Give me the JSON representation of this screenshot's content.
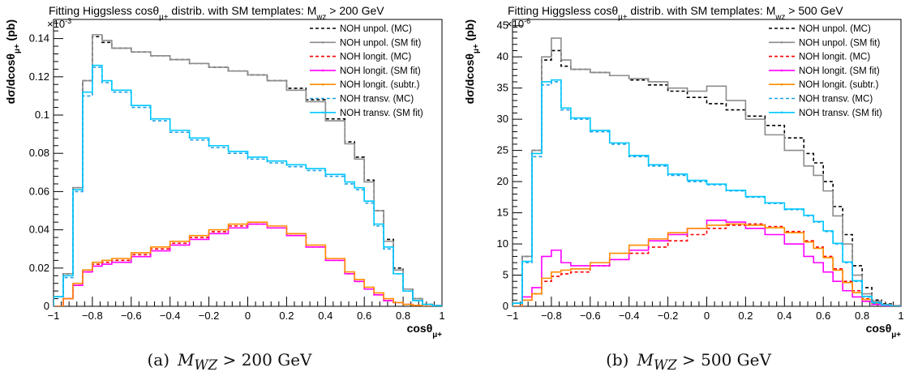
{
  "chart_data": [
    {
      "type": "line",
      "title": "Fitting Higgsless cosθμ+ distrib. with SM templates: Mwz > 200 GeV",
      "title_main": "Fitting Higgsless cosθ",
      "title_sub1": "μ+",
      "title_mid": " distrib. with SM templates: M",
      "title_sub2": "wz",
      "title_end": " > 200 GeV",
      "exponent_label": "×10",
      "exponent_power": "-3",
      "xlabel": "cosθ",
      "xlabel_sub": "μ+",
      "ylabel": "dσ/dcosθ",
      "ylabel_sub": "μ+",
      "ylabel_unit": " (pb)",
      "xlim": [
        -1,
        1
      ],
      "ylim": [
        0,
        0.15
      ],
      "x_ticks": [
        "−1",
        "−0.8",
        "−0.6",
        "−0.4",
        "−0.2",
        "0",
        "0.2",
        "0.4",
        "0.6",
        "0.8",
        "1"
      ],
      "y_ticks": [
        "0",
        "0.02",
        "0.04",
        "0.06",
        "0.08",
        "0.1",
        "0.12",
        "0.14"
      ],
      "y_tick_values": [
        0,
        0.02,
        0.04,
        0.06,
        0.08,
        0.1,
        0.12,
        0.14
      ],
      "legend_position": "top-right",
      "x": [
        -1.0,
        -0.95,
        -0.9,
        -0.85,
        -0.8,
        -0.75,
        -0.7,
        -0.6,
        -0.5,
        -0.4,
        -0.3,
        -0.2,
        -0.1,
        0.0,
        0.1,
        0.2,
        0.3,
        0.4,
        0.5,
        0.55,
        0.6,
        0.65,
        0.7,
        0.75,
        0.8,
        0.85,
        0.9,
        0.95,
        1.0
      ],
      "series": [
        {
          "name": "NOH unpol. (MC)",
          "color": "#000000",
          "dashed": true,
          "values": [
            0.005,
            0.017,
            0.062,
            0.118,
            0.141,
            0.138,
            0.135,
            0.133,
            0.131,
            0.129,
            0.127,
            0.125,
            0.123,
            0.121,
            0.118,
            0.114,
            0.108,
            0.098,
            0.086,
            0.078,
            0.066,
            0.05,
            0.035,
            0.02,
            0.009,
            0.004,
            0.001,
            0.0005,
            0.0
          ]
        },
        {
          "name": "NOH unpol. (SM fit)",
          "color": "#8c8c8c",
          "dashed": false,
          "values": [
            0.005,
            0.017,
            0.062,
            0.118,
            0.142,
            0.139,
            0.135,
            0.133,
            0.131,
            0.129,
            0.127,
            0.125,
            0.123,
            0.121,
            0.118,
            0.113,
            0.107,
            0.097,
            0.085,
            0.077,
            0.065,
            0.05,
            0.034,
            0.019,
            0.009,
            0.004,
            0.001,
            0.0005,
            0.0
          ]
        },
        {
          "name": "NOH longit. (MC)",
          "color": "#ff0000",
          "dashed": true,
          "values": [
            0.0,
            0.004,
            0.011,
            0.018,
            0.022,
            0.023,
            0.024,
            0.027,
            0.03,
            0.033,
            0.036,
            0.039,
            0.042,
            0.043,
            0.041,
            0.037,
            0.031,
            0.024,
            0.017,
            0.013,
            0.009,
            0.006,
            0.003,
            0.002,
            0.001,
            0.0005,
            0.0,
            0.0,
            0.0
          ]
        },
        {
          "name": "NOH longit. (SM fit)",
          "color": "#ff00ff",
          "dashed": false,
          "values": [
            0.0,
            0.004,
            0.011,
            0.018,
            0.021,
            0.022,
            0.023,
            0.026,
            0.029,
            0.032,
            0.035,
            0.038,
            0.041,
            0.043,
            0.041,
            0.037,
            0.031,
            0.024,
            0.017,
            0.013,
            0.009,
            0.006,
            0.003,
            0.002,
            0.001,
            0.0005,
            0.0,
            0.0,
            0.0
          ]
        },
        {
          "name": "NOH longit. (subtr.)",
          "color": "#ff8c00",
          "dashed": false,
          "values": [
            0.0,
            0.004,
            0.012,
            0.019,
            0.023,
            0.024,
            0.025,
            0.028,
            0.031,
            0.034,
            0.037,
            0.04,
            0.043,
            0.044,
            0.042,
            0.038,
            0.032,
            0.025,
            0.018,
            0.014,
            0.01,
            0.007,
            0.004,
            0.002,
            0.001,
            0.0005,
            0.0,
            0.0,
            0.0
          ]
        },
        {
          "name": "NOH transv. (MC)",
          "color": "#1ea0e6",
          "dashed": true,
          "values": [
            0.005,
            0.015,
            0.06,
            0.11,
            0.125,
            0.117,
            0.112,
            0.104,
            0.097,
            0.091,
            0.087,
            0.083,
            0.08,
            0.077,
            0.075,
            0.073,
            0.071,
            0.068,
            0.064,
            0.061,
            0.054,
            0.042,
            0.03,
            0.017,
            0.008,
            0.003,
            0.001,
            0.0003,
            0.0
          ]
        },
        {
          "name": "NOH transv. (SM fit)",
          "color": "#00c8ff",
          "dashed": false,
          "values": [
            0.005,
            0.016,
            0.061,
            0.112,
            0.126,
            0.118,
            0.113,
            0.105,
            0.098,
            0.092,
            0.088,
            0.084,
            0.081,
            0.078,
            0.076,
            0.074,
            0.072,
            0.069,
            0.065,
            0.062,
            0.055,
            0.043,
            0.031,
            0.017,
            0.008,
            0.003,
            0.001,
            0.0003,
            0.0
          ]
        }
      ],
      "caption_tag": "(a)",
      "caption_math": "M",
      "caption_sub": "WZ",
      "caption_rest": " > 200 GeV"
    },
    {
      "type": "line",
      "title": "Fitting Higgsless cosθμ+ distrib. with SM templates: Mwz > 500 GeV",
      "title_main": "Fitting Higgsless cosθ",
      "title_sub1": "μ+",
      "title_mid": " distrib. with SM templates: M",
      "title_sub2": "wz",
      "title_end": " > 500 GeV",
      "exponent_label": "×10",
      "exponent_power": "-6",
      "xlabel": "cosθ",
      "xlabel_sub": "μ+",
      "ylabel": "dσ/dcosθ",
      "ylabel_sub": "μ+",
      "ylabel_unit": " (pb)",
      "xlim": [
        -1,
        1
      ],
      "ylim": [
        0,
        46
      ],
      "x_ticks": [
        "−1",
        "−0.8",
        "−0.6",
        "−0.4",
        "−0.2",
        "0",
        "0.2",
        "0.4",
        "0.6",
        "0.8",
        "1"
      ],
      "y_ticks": [
        "0",
        "5",
        "10",
        "15",
        "20",
        "25",
        "30",
        "35",
        "40",
        "45"
      ],
      "y_tick_values": [
        0,
        5,
        10,
        15,
        20,
        25,
        30,
        35,
        40,
        45
      ],
      "legend_position": "top-right",
      "x": [
        -1.0,
        -0.95,
        -0.9,
        -0.85,
        -0.8,
        -0.75,
        -0.7,
        -0.6,
        -0.5,
        -0.4,
        -0.3,
        -0.2,
        -0.1,
        0.0,
        0.1,
        0.2,
        0.3,
        0.4,
        0.5,
        0.55,
        0.6,
        0.65,
        0.7,
        0.75,
        0.8,
        0.85,
        0.9,
        0.95,
        1.0
      ],
      "series": [
        {
          "name": "NOH unpol. (MC)",
          "color": "#000000",
          "dashed": true,
          "values": [
            0.5,
            8.0,
            25.0,
            39.5,
            41.0,
            38.5,
            38.0,
            37.5,
            37.0,
            36.3,
            35.5,
            34.5,
            33.5,
            32.5,
            31.5,
            30.5,
            29.0,
            27.0,
            24.5,
            23.0,
            20.0,
            16.0,
            11.5,
            6.5,
            3.0,
            1.0,
            0.4,
            0.1,
            0.0
          ]
        },
        {
          "name": "NOH unpol. (SM fit)",
          "color": "#8c8c8c",
          "dashed": false,
          "values": [
            0.5,
            8.0,
            25.0,
            40.0,
            43.0,
            39.5,
            38.0,
            37.5,
            37.0,
            36.5,
            36.0,
            35.0,
            34.5,
            35.3,
            33.0,
            30.0,
            27.5,
            25.0,
            22.5,
            21.0,
            18.5,
            14.5,
            10.0,
            5.0,
            2.0,
            0.8,
            0.3,
            0.1,
            0.0
          ]
        },
        {
          "name": "NOH longit. (MC)",
          "color": "#ff0000",
          "dashed": true,
          "values": [
            0.0,
            1.0,
            2.0,
            4.0,
            4.8,
            5.2,
            5.5,
            6.5,
            7.5,
            8.5,
            9.5,
            10.5,
            11.5,
            12.5,
            13.0,
            13.2,
            12.8,
            12.0,
            10.5,
            9.5,
            8.0,
            6.0,
            4.0,
            2.5,
            1.2,
            0.5,
            0.2,
            0.0,
            0.0
          ]
        },
        {
          "name": "NOH longit. (SM fit)",
          "color": "#ff00ff",
          "dashed": false,
          "values": [
            0.0,
            1.5,
            3.0,
            8.0,
            9.0,
            7.0,
            6.5,
            6.5,
            7.5,
            9.0,
            10.5,
            11.5,
            12.5,
            13.8,
            13.5,
            12.5,
            11.5,
            10.0,
            8.0,
            7.0,
            5.5,
            4.0,
            2.5,
            1.5,
            0.8,
            0.3,
            0.1,
            0.0,
            0.0
          ]
        },
        {
          "name": "NOH longit. (subtr.)",
          "color": "#ff8c00",
          "dashed": false,
          "values": [
            0.0,
            1.0,
            2.0,
            4.5,
            5.5,
            5.8,
            6.0,
            7.0,
            8.5,
            9.8,
            10.8,
            11.8,
            12.5,
            13.0,
            13.2,
            13.0,
            12.6,
            11.8,
            10.3,
            9.3,
            7.8,
            5.8,
            3.8,
            2.2,
            1.1,
            0.5,
            0.2,
            0.0,
            0.0
          ]
        },
        {
          "name": "NOH transv. (MC)",
          "color": "#1ea0e6",
          "dashed": true,
          "values": [
            0.5,
            7.0,
            24.0,
            35.5,
            36.0,
            31.5,
            30.0,
            28.0,
            26.0,
            24.0,
            22.5,
            21.0,
            20.0,
            19.5,
            18.5,
            17.5,
            16.5,
            15.5,
            14.5,
            13.5,
            12.0,
            10.0,
            7.0,
            4.0,
            1.5,
            0.5,
            0.2,
            0.0,
            0.0
          ]
        },
        {
          "name": "NOH transv. (SM fit)",
          "color": "#00c8ff",
          "dashed": false,
          "values": [
            0.5,
            7.2,
            24.5,
            36.0,
            36.3,
            31.8,
            30.2,
            28.2,
            26.2,
            24.2,
            22.7,
            21.2,
            20.2,
            19.6,
            18.6,
            17.6,
            16.6,
            15.6,
            14.6,
            13.6,
            12.1,
            10.1,
            7.1,
            4.1,
            1.6,
            0.6,
            0.2,
            0.0,
            0.0
          ]
        }
      ],
      "caption_tag": "(b)",
      "caption_math": "M",
      "caption_sub": "WZ",
      "caption_rest": " > 500 GeV"
    }
  ]
}
